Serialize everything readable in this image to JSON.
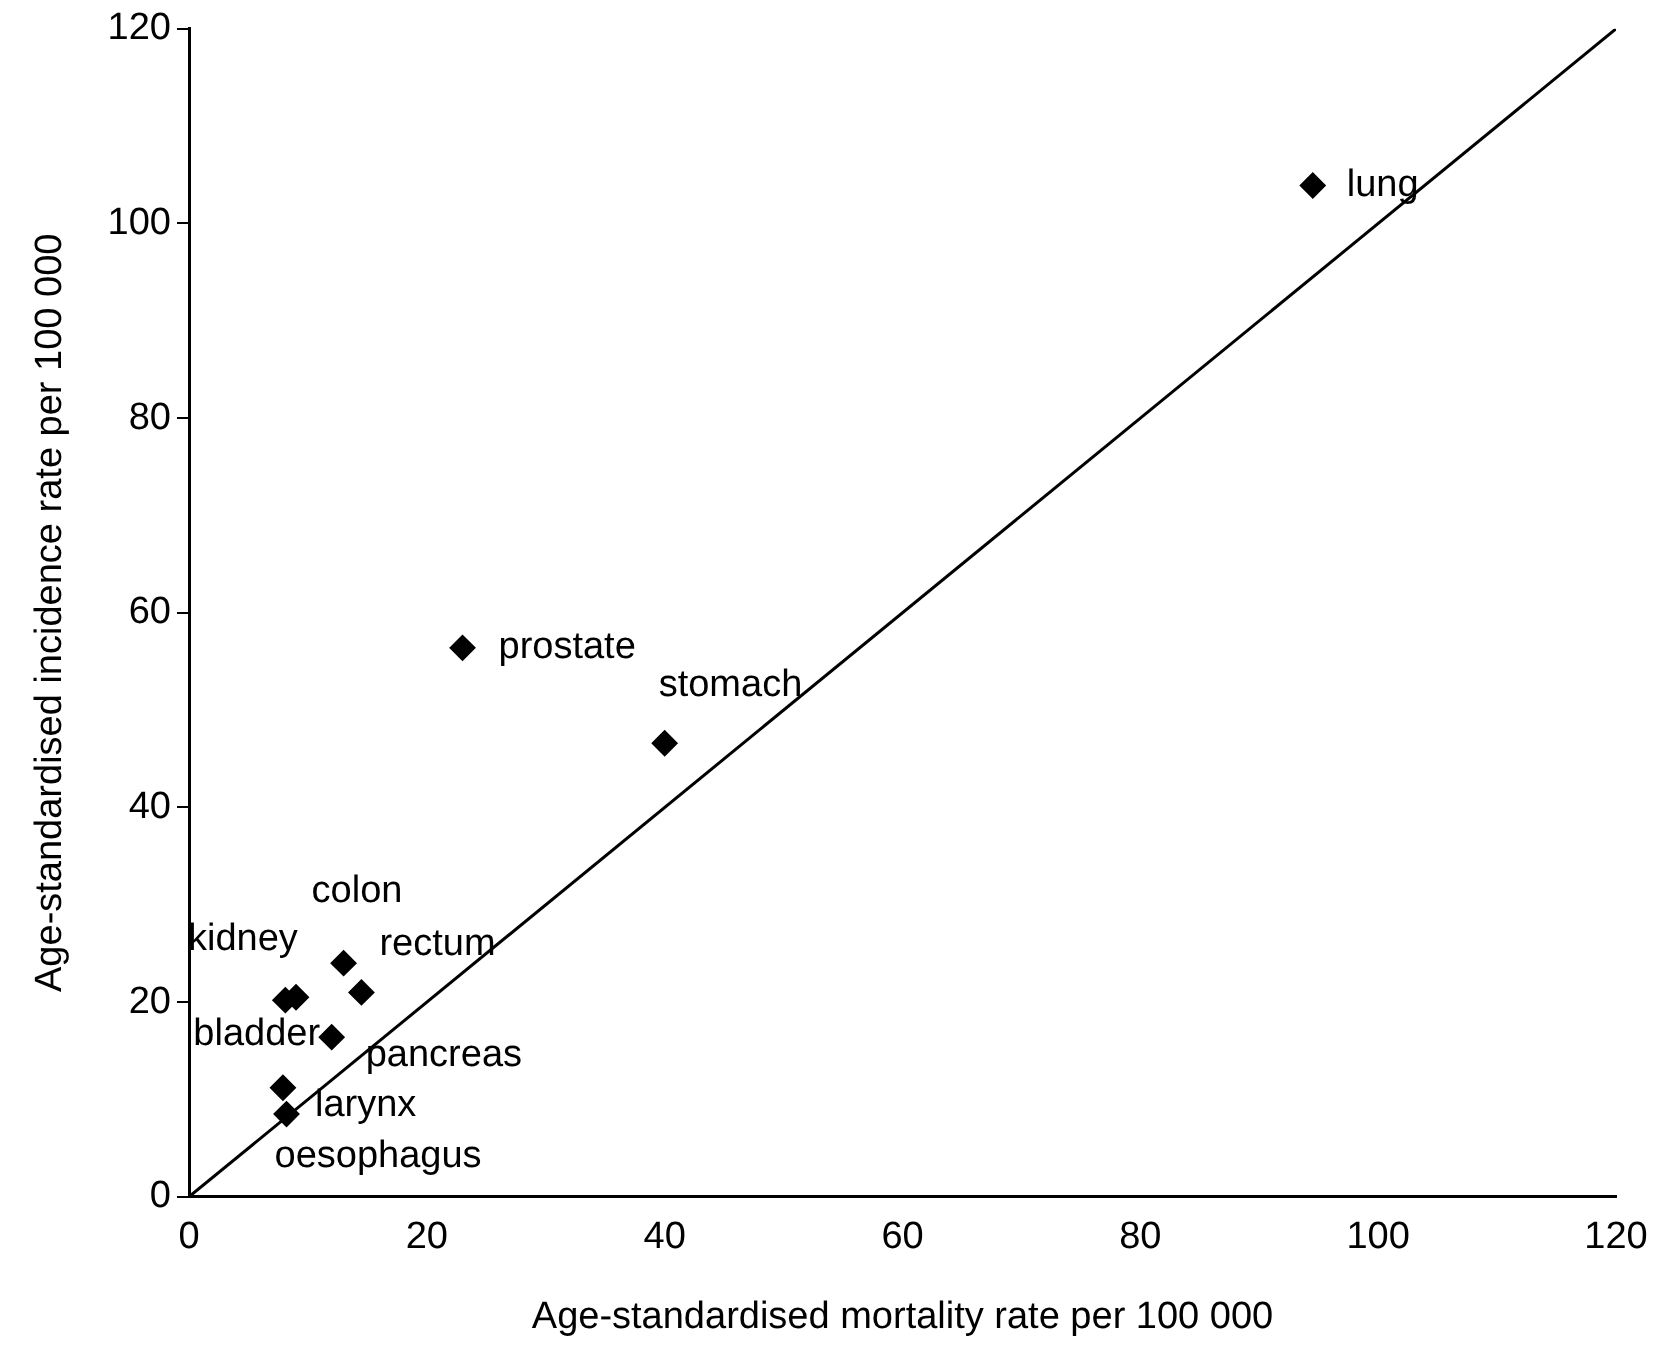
{
  "chart_data": {
    "type": "scatter",
    "xlabel": "Age-standardised mortality rate per 100 000",
    "ylabel": "Age-standardised incidence rate per 100 000",
    "x": [
      94.5,
      23.0,
      40.0,
      13.0,
      14.5,
      9.0,
      8.1,
      12.0,
      7.9,
      8.2
    ],
    "series": [
      {
        "type": "scatter",
        "color": "#000000",
        "marker": "diamond",
        "values": [
          103.9,
          56.4,
          46.6,
          24.0,
          21.0,
          20.5,
          20.2,
          16.4,
          11.2,
          8.5
        ]
      },
      {
        "type": "line",
        "color": "#000000",
        "marker": "none",
        "line_style": "solid",
        "x": [
          0,
          120
        ],
        "values": [
          0,
          120
        ]
      }
    ],
    "annotations": [
      {
        "text": "lung",
        "x": 94.5,
        "y": 103.9
      },
      {
        "text": "prostate",
        "x": 23.0,
        "y": 56.4
      },
      {
        "text": "stomach",
        "x": 40.0,
        "y": 46.6
      },
      {
        "text": "colon",
        "x": 13.0,
        "y": 24.0
      },
      {
        "text": "rectum",
        "x": 14.5,
        "y": 21.0
      },
      {
        "text": "kidney",
        "x": 9.0,
        "y": 20.5
      },
      {
        "text": "bladder",
        "x": 8.1,
        "y": 20.2
      },
      {
        "text": "pancreas",
        "x": 12.0,
        "y": 16.4
      },
      {
        "text": "larynx",
        "x": 7.9,
        "y": 11.2
      },
      {
        "text": "oesophagus",
        "x": 8.2,
        "y": 8.5
      }
    ],
    "xlim": [
      0,
      120
    ],
    "ylim": [
      0,
      120
    ],
    "xticks": [
      0,
      20,
      40,
      60,
      80,
      100,
      120
    ],
    "yticks": [
      0,
      20,
      40,
      60,
      80,
      100,
      120
    ],
    "grid": false,
    "legend": false
  }
}
